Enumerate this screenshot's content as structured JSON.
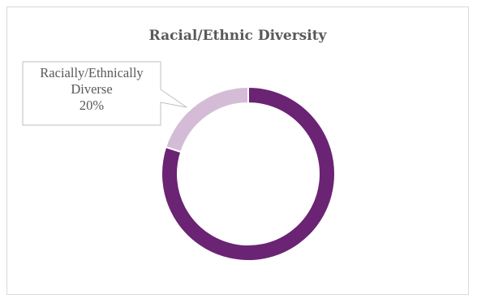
{
  "chart_data": {
    "type": "pie",
    "variant": "doughnut",
    "title": "Racial/Ethnic Diversity",
    "categories": [
      "Racially/Ethnically Diverse",
      ""
    ],
    "values": [
      20,
      80
    ],
    "colors": [
      "#d5bcd6",
      "#6b2374"
    ],
    "data_labels": [
      {
        "lines": [
          "Racially/Ethnically",
          "Diverse",
          "20%"
        ],
        "slice": 0
      }
    ],
    "legend": "none",
    "grid": false
  }
}
